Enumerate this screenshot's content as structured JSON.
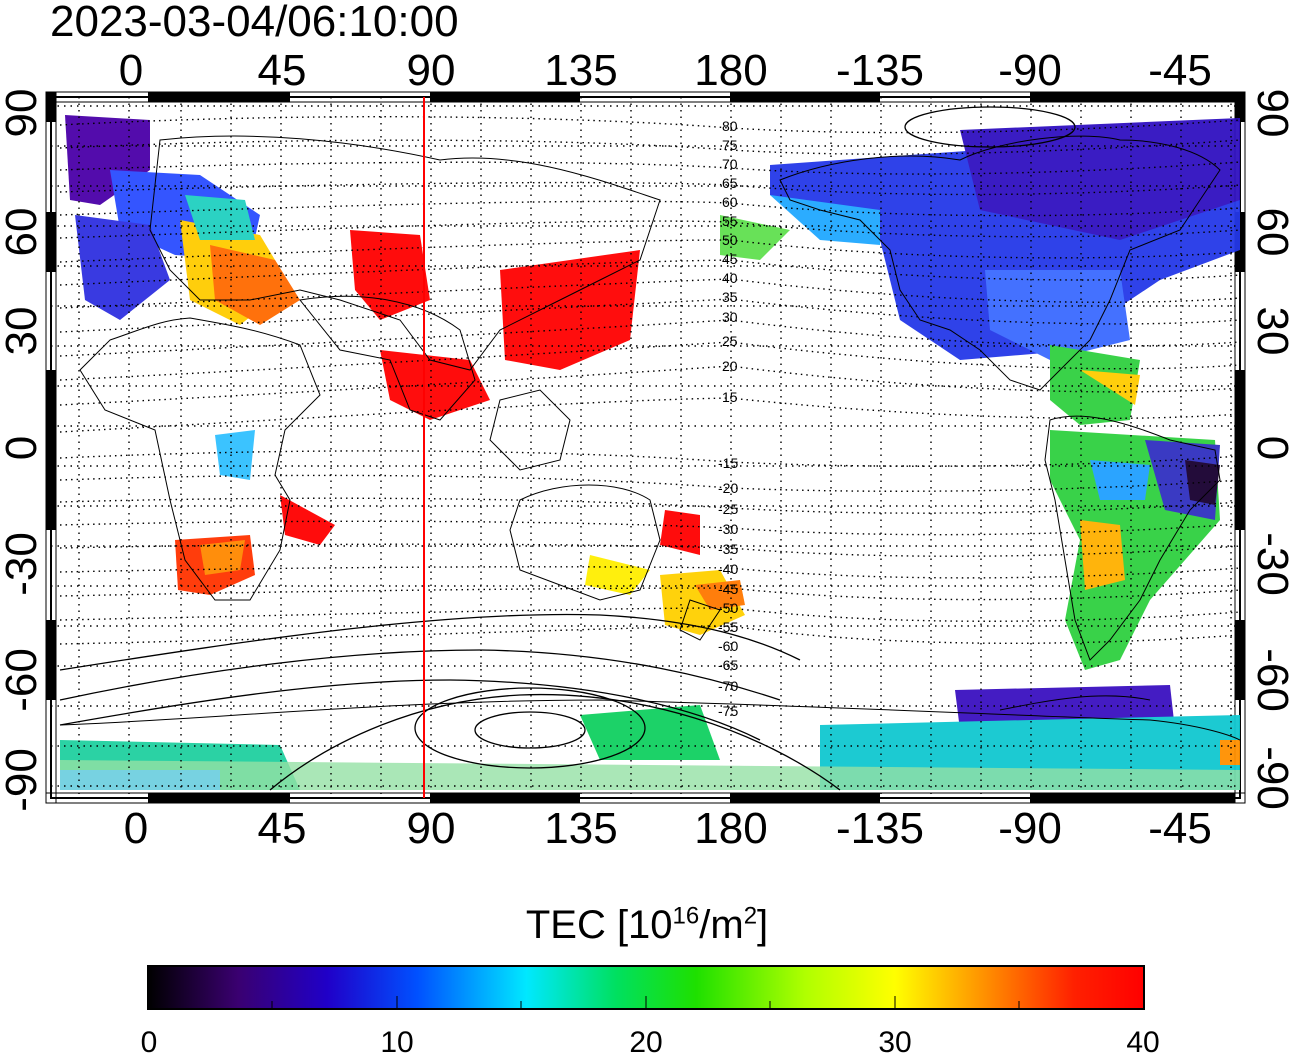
{
  "title": "2023-03-04/06:10:00",
  "map": {
    "lon_ticks_top": [
      "0",
      "45",
      "90",
      "135",
      "180",
      "-135",
      "-90",
      "-45"
    ],
    "lon_ticks_bottom": [
      "0",
      "45",
      "90",
      "135",
      "180",
      "-135",
      "-90",
      "-45"
    ],
    "lat_ticks_left": [
      "90",
      "60",
      "30",
      "0",
      "-30",
      "-60",
      "-90"
    ],
    "lat_ticks_right": [
      "90",
      "60",
      "30",
      "0",
      "-30",
      "-60",
      "-90"
    ],
    "magnetic_lat_labels": [
      "80",
      "75",
      "70",
      "65",
      "60",
      "55",
      "50",
      "45",
      "40",
      "35",
      "30",
      "25",
      "20",
      "15",
      "-15",
      "-20",
      "-25",
      "-30",
      "-35",
      "-40",
      "-45",
      "-50",
      "-55",
      "-60",
      "-65",
      "-70",
      "-75"
    ],
    "red_line_lon": 88,
    "grid": "dotted"
  },
  "colorbar": {
    "label_prefix": "TEC  [10",
    "label_exp": "16",
    "label_mid": "/m",
    "label_exp2": "2",
    "label_suffix": "]",
    "ticks": [
      "0",
      "10",
      "20",
      "30",
      "40"
    ],
    "range": [
      0,
      40
    ],
    "colors": [
      "#000000",
      "#3a0070",
      "#2000c8",
      "#0050ff",
      "#00e8ff",
      "#00e060",
      "#1ee000",
      "#b0ff00",
      "#ffff00",
      "#ff9000",
      "#ff2000",
      "#ff0000"
    ]
  }
}
